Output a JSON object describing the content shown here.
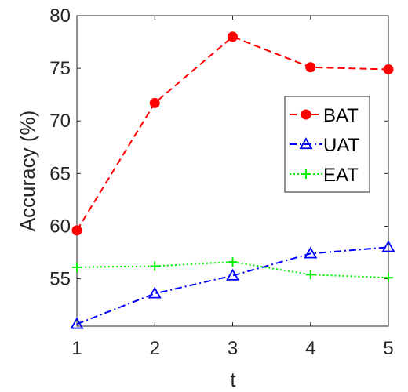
{
  "chart_data": {
    "type": "line",
    "title": "",
    "xlabel": "t",
    "ylabel": "Accuracy (%)",
    "x": [
      1,
      2,
      3,
      4,
      5
    ],
    "xlim": [
      1,
      5
    ],
    "ylim": [
      50.5,
      80
    ],
    "xticks": [
      "1",
      "2",
      "3",
      "4",
      "5"
    ],
    "yticks": [
      "55",
      "60",
      "65",
      "70",
      "75",
      "80"
    ],
    "grid": false,
    "legend_position": "right",
    "series": [
      {
        "name": "BAT",
        "values": [
          59.6,
          71.7,
          78.0,
          75.1,
          74.9
        ],
        "color": "#ff0000",
        "line_style": "dashed",
        "marker": "circle"
      },
      {
        "name": "UAT",
        "values": [
          50.7,
          53.6,
          55.3,
          57.4,
          58.0
        ],
        "color": "#0000ff",
        "line_style": "dash-dot",
        "marker": "triangle"
      },
      {
        "name": "EAT",
        "values": [
          56.1,
          56.2,
          56.6,
          55.4,
          55.1
        ],
        "color": "#00ee00",
        "line_style": "dotted",
        "marker": "plus"
      }
    ]
  }
}
